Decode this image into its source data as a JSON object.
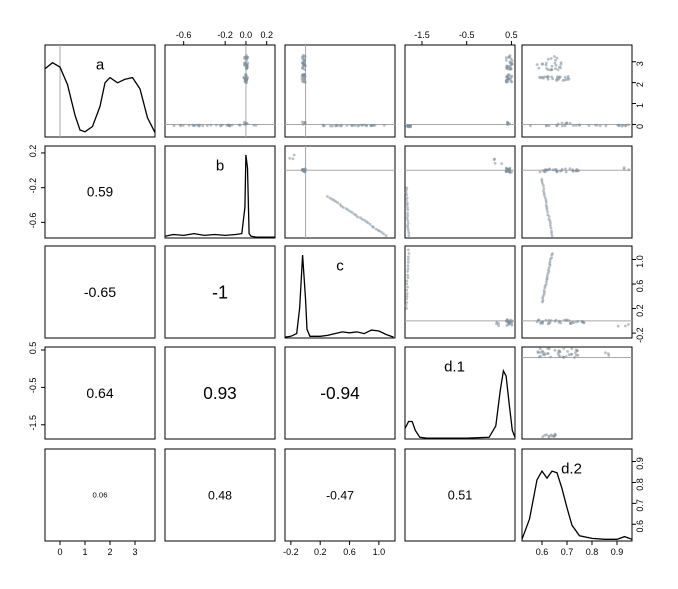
{
  "chart_data": {
    "type": "scatter",
    "title": "",
    "variables": [
      {
        "name": "a",
        "range": [
          -0.6,
          3.8
        ]
      },
      {
        "name": "b",
        "range": [
          -0.78,
          0.28
        ]
      },
      {
        "name": "c",
        "range": [
          -0.28,
          1.22
        ]
      },
      {
        "name": "d.1",
        "range": [
          -1.88,
          0.58
        ]
      },
      {
        "name": "d.2",
        "range": [
          0.52,
          0.96
        ]
      }
    ],
    "reference_lines": {
      "a": 0,
      "b": 0,
      "c": 0
    },
    "axis_ticks": {
      "a": {
        "side": "bottom",
        "values": [
          0,
          1,
          2,
          3
        ],
        "labels": [
          "0",
          "1",
          "2",
          "3"
        ]
      },
      "b": {
        "side": "left",
        "values": [
          0.2,
          -0.2,
          -0.6
        ],
        "labels": [
          "0.2",
          "-0.2",
          "-0.6"
        ]
      },
      "b_top": {
        "side": "top",
        "values": [
          -0.6,
          -0.2,
          0.0,
          0.2
        ],
        "labels": [
          "-0.6",
          "-0.2",
          "0.0",
          "0.2"
        ]
      },
      "c": {
        "side": "bottom",
        "values": [
          -0.2,
          0.2,
          0.6,
          1.0
        ],
        "labels": [
          "-0.2",
          "0.2",
          "0.6",
          "1.0"
        ]
      },
      "c_right": {
        "side": "right",
        "values": [
          1.0,
          0.6,
          0.2,
          -0.2
        ],
        "labels": [
          "1.0",
          "0.6",
          "0.2",
          "-0.2"
        ]
      },
      "d.1": {
        "side": "left",
        "values": [
          0.5,
          -0.5,
          -1.5
        ],
        "labels": [
          "0.5",
          "-0.5",
          "-1.5"
        ]
      },
      "d.1_top": {
        "side": "top",
        "values": [
          -1.5,
          -0.5,
          0.5
        ],
        "labels": [
          "-1.5",
          "-0.5",
          "0.5"
        ]
      },
      "a_right": {
        "side": "right",
        "values": [
          3,
          2,
          1,
          0
        ],
        "labels": [
          "3",
          "2",
          "1",
          "0"
        ]
      },
      "d.2": {
        "side": "right",
        "values": [
          0.9,
          0.8,
          0.7,
          0.6
        ],
        "labels": [
          "0.9",
          "0.8",
          "0.7",
          "0.6"
        ]
      },
      "d.2_bottom": {
        "side": "bottom",
        "values": [
          0.6,
          0.7,
          0.8,
          0.9
        ],
        "labels": [
          "0.6",
          "0.7",
          "0.8",
          "0.9"
        ]
      }
    },
    "correlations": [
      {
        "row": "b",
        "col": "a",
        "value": "0.59"
      },
      {
        "row": "c",
        "col": "a",
        "value": "-0.65"
      },
      {
        "row": "c",
        "col": "b",
        "value": "-1"
      },
      {
        "row": "d.1",
        "col": "a",
        "value": "0.64"
      },
      {
        "row": "d.1",
        "col": "b",
        "value": "0.93"
      },
      {
        "row": "d.1",
        "col": "c",
        "value": "-0.94"
      },
      {
        "row": "d.2",
        "col": "a",
        "value": "0.06"
      },
      {
        "row": "d.2",
        "col": "b",
        "value": "0.48"
      },
      {
        "row": "d.2",
        "col": "c",
        "value": "-0.47"
      },
      {
        "row": "d.2",
        "col": "d.1",
        "value": "0.51"
      }
    ],
    "densities": {
      "a": {
        "x": [
          -0.6,
          -0.3,
          0.0,
          0.3,
          0.6,
          0.8,
          1.0,
          1.3,
          1.6,
          1.8,
          2.0,
          2.3,
          2.6,
          2.9,
          3.2,
          3.5,
          3.8
        ],
        "y": [
          0.78,
          0.85,
          0.8,
          0.6,
          0.25,
          0.08,
          0.06,
          0.12,
          0.35,
          0.62,
          0.68,
          0.62,
          0.66,
          0.68,
          0.55,
          0.22,
          0.05
        ]
      },
      "b": {
        "x": [
          -0.78,
          -0.7,
          -0.6,
          -0.5,
          -0.4,
          -0.3,
          -0.2,
          -0.1,
          -0.04,
          -0.01,
          0.0,
          0.015,
          0.03,
          0.05,
          0.1,
          0.2,
          0.28
        ],
        "y": [
          0.02,
          0.04,
          0.03,
          0.05,
          0.03,
          0.04,
          0.03,
          0.04,
          0.05,
          0.35,
          0.95,
          0.8,
          0.05,
          0.02,
          0.01,
          0.01,
          0.01
        ]
      },
      "c": {
        "x": [
          -0.28,
          -0.2,
          -0.12,
          -0.08,
          -0.04,
          0.0,
          0.02,
          0.06,
          0.1,
          0.2,
          0.3,
          0.4,
          0.5,
          0.6,
          0.7,
          0.8,
          0.9,
          1.0,
          1.1,
          1.2
        ],
        "y": [
          0.01,
          0.02,
          0.05,
          0.35,
          0.95,
          0.45,
          0.1,
          0.02,
          0.02,
          0.02,
          0.03,
          0.05,
          0.07,
          0.06,
          0.07,
          0.05,
          0.09,
          0.08,
          0.04,
          0.01
        ]
      },
      "d.1": {
        "x": [
          -1.88,
          -1.8,
          -1.72,
          -1.65,
          -1.55,
          -1.4,
          -1.0,
          -0.5,
          0.0,
          0.15,
          0.25,
          0.32,
          0.38,
          0.45,
          0.52,
          0.58
        ],
        "y": [
          0.12,
          0.2,
          0.2,
          0.1,
          0.02,
          0.01,
          0.01,
          0.01,
          0.02,
          0.15,
          0.55,
          0.78,
          0.72,
          0.4,
          0.1,
          0.02
        ]
      },
      "d.2": {
        "x": [
          0.52,
          0.55,
          0.58,
          0.6,
          0.62,
          0.64,
          0.66,
          0.68,
          0.7,
          0.72,
          0.75,
          0.8,
          0.85,
          0.9,
          0.93,
          0.96
        ],
        "y": [
          0.02,
          0.25,
          0.7,
          0.8,
          0.72,
          0.8,
          0.78,
          0.6,
          0.38,
          0.18,
          0.06,
          0.03,
          0.02,
          0.02,
          0.05,
          0.02
        ]
      }
    },
    "scatter_groups": {
      "a_vs_b": [
        {
          "x": [
            -0.02,
            0.02
          ],
          "y": [
            2.6,
            3.3
          ],
          "n": 25
        },
        {
          "x": [
            -0.02,
            0.02
          ],
          "y": [
            2.0,
            2.4
          ],
          "n": 20
        },
        {
          "x": [
            -0.7,
            0.1
          ],
          "y": [
            -0.08,
            -0.02
          ],
          "n": 30
        },
        {
          "x": [
            -0.02,
            0.02
          ],
          "y": [
            0.0,
            0.12
          ],
          "n": 6
        }
      ],
      "a_vs_c": [
        {
          "x": [
            -0.05,
            0.0
          ],
          "y": [
            2.6,
            3.3
          ],
          "n": 25
        },
        {
          "x": [
            -0.05,
            0.0
          ],
          "y": [
            2.0,
            2.4
          ],
          "n": 20
        },
        {
          "x": [
            0.2,
            1.1
          ],
          "y": [
            -0.08,
            -0.02
          ],
          "n": 30
        },
        {
          "x": [
            -0.05,
            0.0
          ],
          "y": [
            0.0,
            0.12
          ],
          "n": 6
        }
      ],
      "a_vs_d1": [
        {
          "x": [
            0.38,
            0.52
          ],
          "y": [
            2.6,
            3.3
          ],
          "n": 25
        },
        {
          "x": [
            0.38,
            0.52
          ],
          "y": [
            2.0,
            2.4
          ],
          "n": 20
        },
        {
          "x": [
            -1.85,
            -1.75
          ],
          "y": [
            -0.12,
            -0.05
          ],
          "n": 15
        },
        {
          "x": [
            0.4,
            0.48
          ],
          "y": [
            0.0,
            0.12
          ],
          "n": 6
        }
      ],
      "a_vs_d2": [
        {
          "x": [
            0.58,
            0.68
          ],
          "y": [
            2.6,
            3.3
          ],
          "n": 25
        },
        {
          "x": [
            0.58,
            0.72
          ],
          "y": [
            2.1,
            2.3
          ],
          "n": 25
        },
        {
          "x": [
            0.55,
            0.95
          ],
          "y": [
            -0.08,
            -0.02
          ],
          "n": 25
        },
        {
          "x": [
            0.65,
            0.72
          ],
          "y": [
            0.0,
            0.08
          ],
          "n": 6
        }
      ],
      "b_vs_c": [
        {
          "x": [
            -0.05,
            0.0
          ],
          "y": [
            -0.02,
            0.02
          ],
          "n": 15
        },
        {
          "x": [
            -0.25,
            -0.15
          ],
          "y": [
            0.1,
            0.2
          ],
          "n": 3
        },
        {
          "line": true,
          "x": [
            0.3,
            1.1
          ],
          "y": [
            -0.3,
            -0.75
          ],
          "n": 30
        }
      ],
      "b_vs_d1": [
        {
          "x": [
            0.38,
            0.52
          ],
          "y": [
            -0.03,
            0.03
          ],
          "n": 20
        },
        {
          "line": true,
          "x": [
            -1.85,
            -1.8
          ],
          "y": [
            -0.2,
            -0.75
          ],
          "n": 20
        },
        {
          "x": [
            0.1,
            0.3
          ],
          "y": [
            0.05,
            0.15
          ],
          "n": 4
        }
      ],
      "b_vs_d2": [
        {
          "x": [
            0.58,
            0.75
          ],
          "y": [
            -0.02,
            0.02
          ],
          "n": 30
        },
        {
          "line": true,
          "x": [
            0.6,
            0.64
          ],
          "y": [
            -0.1,
            -0.75
          ],
          "n": 25
        },
        {
          "x": [
            0.9,
            0.95
          ],
          "y": [
            0.0,
            0.05
          ],
          "n": 3
        }
      ],
      "c_vs_d1": [
        {
          "x": [
            0.38,
            0.52
          ],
          "y": [
            -0.08,
            0.02
          ],
          "n": 20
        },
        {
          "line": true,
          "x": [
            -1.85,
            -1.8
          ],
          "y": [
            0.2,
            1.15
          ],
          "n": 20
        },
        {
          "x": [
            0.1,
            0.3
          ],
          "y": [
            -0.1,
            0.0
          ],
          "n": 4
        }
      ],
      "c_vs_d2": [
        {
          "x": [
            0.58,
            0.78
          ],
          "y": [
            -0.05,
            0.02
          ],
          "n": 35
        },
        {
          "line": true,
          "x": [
            0.6,
            0.64
          ],
          "y": [
            0.3,
            1.1
          ],
          "n": 25
        },
        {
          "x": [
            0.9,
            0.95
          ],
          "y": [
            -0.1,
            -0.05
          ],
          "n": 3
        }
      ],
      "d1_vs_d2": [
        {
          "x": [
            0.58,
            0.75
          ],
          "y": [
            0.3,
            0.55
          ],
          "n": 40
        },
        {
          "x": [
            0.6,
            0.66
          ],
          "y": [
            -1.82,
            -1.75
          ],
          "n": 12
        },
        {
          "x": [
            0.85,
            0.95
          ],
          "y": [
            0.35,
            0.45
          ],
          "n": 3
        }
      ]
    }
  }
}
